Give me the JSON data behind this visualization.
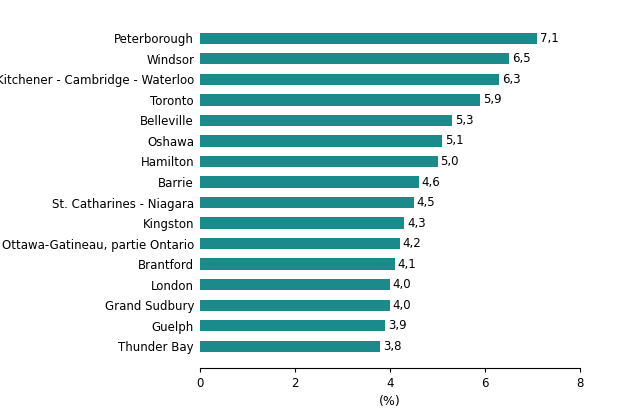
{
  "categories": [
    "Thunder Bay",
    "Guelph",
    "Grand Sudbury",
    "London",
    "Brantford",
    "Ottawa-Gatineau, partie Ontario",
    "Kingston",
    "St. Catharines - Niagara",
    "Barrie",
    "Hamilton",
    "Oshawa",
    "Belleville",
    "Toronto",
    "Kitchener - Cambridge - Waterloo",
    "Windsor",
    "Peterborough"
  ],
  "values": [
    3.8,
    3.9,
    4.0,
    4.0,
    4.1,
    4.2,
    4.3,
    4.5,
    4.6,
    5.0,
    5.1,
    5.3,
    5.9,
    6.3,
    6.5,
    7.1
  ],
  "labels": [
    "3,8",
    "3,9",
    "4,0",
    "4,0",
    "4,1",
    "4,2",
    "4,3",
    "4,5",
    "4,6",
    "5,0",
    "5,1",
    "5,3",
    "5,9",
    "6,3",
    "6,5",
    "7,1"
  ],
  "bar_color": "#1a8a8a",
  "xlabel": "(%)",
  "xlim": [
    0,
    8
  ],
  "xticks": [
    0,
    2,
    4,
    6,
    8
  ],
  "background_color": "#ffffff",
  "label_fontsize": 8.5,
  "tick_fontsize": 8.5,
  "xlabel_fontsize": 9,
  "bar_height": 0.55,
  "figsize": [
    6.24,
    4.18
  ],
  "dpi": 100
}
